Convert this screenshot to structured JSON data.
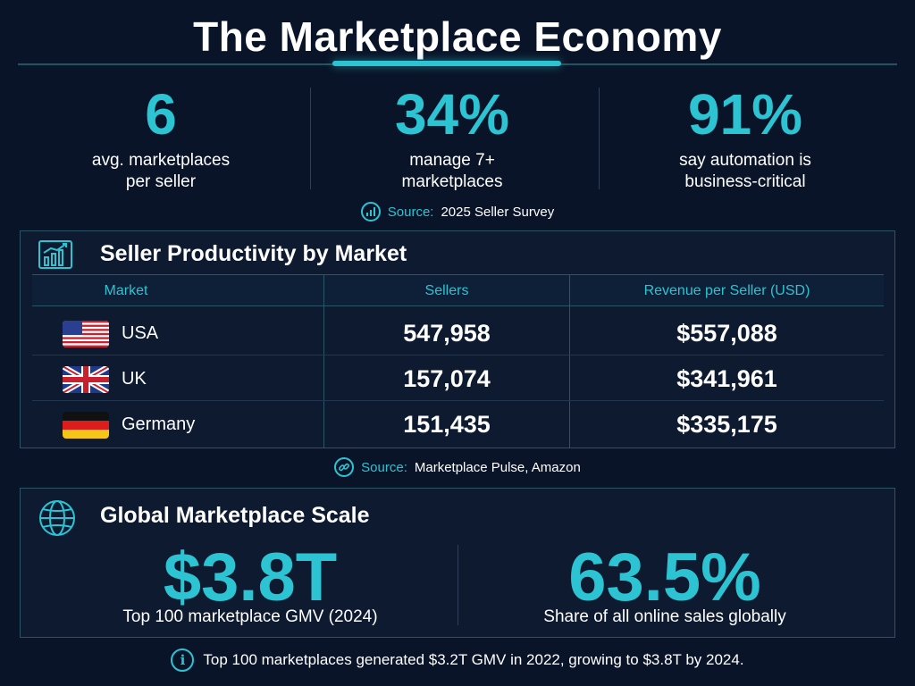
{
  "title": "The Marketplace Economy",
  "stats": [
    {
      "value": "6",
      "line1": "avg. marketplaces",
      "line2": "per seller"
    },
    {
      "value": "34%",
      "line1": "manage 7+",
      "line2": "marketplaces"
    },
    {
      "value": "91%",
      "line1": "say automation is",
      "line2": "business-critical"
    }
  ],
  "survey_source": {
    "label": "Source:",
    "text": "2025 Seller Survey",
    "icon": "bar-chart-icon"
  },
  "productivity": {
    "title": "Seller Productivity by Market",
    "icon": "growth-chart-icon",
    "columns": [
      "Market",
      "Sellers",
      "Revenue per Seller (USD)"
    ],
    "rows": [
      {
        "country": "USA",
        "flag": "us-flag-icon",
        "sellers": "547,958",
        "revenue": "$557,088"
      },
      {
        "country": "UK",
        "flag": "uk-flag-icon",
        "sellers": "157,074",
        "revenue": "$341,961"
      },
      {
        "country": "Germany",
        "flag": "germany-flag-icon",
        "sellers": "151,435",
        "revenue": "$335,175"
      }
    ]
  },
  "pulse_source": {
    "label": "Source:",
    "text": "Marketplace Pulse, Amazon",
    "icon": "link-icon"
  },
  "global": {
    "title": "Global Marketplace Scale",
    "icon": "globe-icon",
    "left": {
      "value": "$3.8T",
      "desc": "Top 100 marketplace GMV (2024)"
    },
    "right": {
      "value": "63.5%",
      "desc": "Share of all online sales globally"
    }
  },
  "footer": {
    "icon": "info-icon",
    "text": "Top 100 marketplaces generated $3.2T GMV in 2022, growing to $3.8T by 2024."
  },
  "colors": {
    "accent": "#2cc3d2",
    "background": "#0a1428",
    "panel": "#0d1a30",
    "border": "#2b5566"
  }
}
